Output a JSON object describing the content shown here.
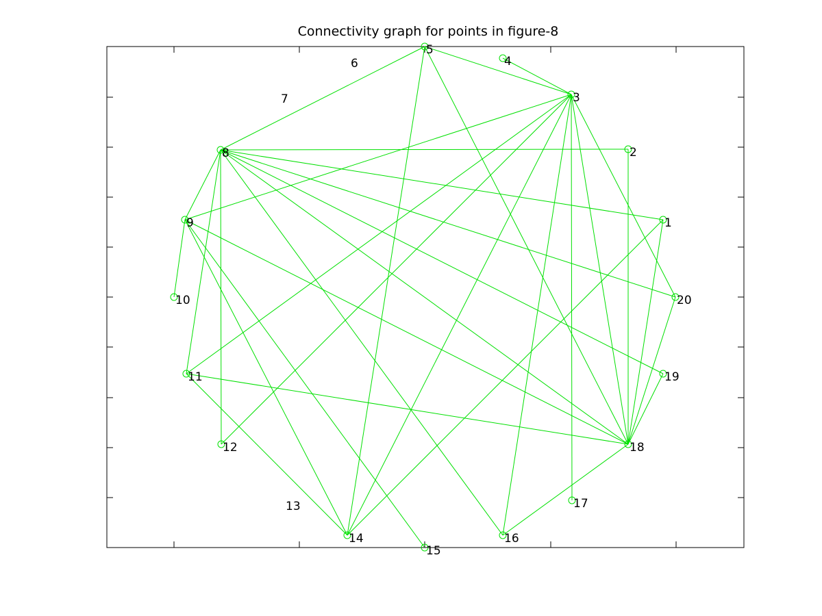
{
  "title": "Connectivity graph for points in figure-8",
  "colors": {
    "edge": "#00e000",
    "node": "#00e000",
    "text": "#000000"
  },
  "chart_data": {
    "type": "network",
    "nodes": [
      {
        "id": 1,
        "label": "1",
        "marker": true
      },
      {
        "id": 2,
        "label": "2",
        "marker": true
      },
      {
        "id": 3,
        "label": "3",
        "marker": true
      },
      {
        "id": 4,
        "label": "4",
        "marker": true
      },
      {
        "id": 5,
        "label": "5",
        "marker": true
      },
      {
        "id": 6,
        "label": "6",
        "marker": false
      },
      {
        "id": 7,
        "label": "7",
        "marker": false
      },
      {
        "id": 8,
        "label": "8",
        "marker": true
      },
      {
        "id": 9,
        "label": "9",
        "marker": true
      },
      {
        "id": 10,
        "label": "10",
        "marker": true
      },
      {
        "id": 11,
        "label": "11",
        "marker": true
      },
      {
        "id": 12,
        "label": "12",
        "marker": true
      },
      {
        "id": 13,
        "label": "13",
        "marker": false
      },
      {
        "id": 14,
        "label": "14",
        "marker": true
      },
      {
        "id": 15,
        "label": "15",
        "marker": true
      },
      {
        "id": 16,
        "label": "16",
        "marker": true
      },
      {
        "id": 17,
        "label": "17",
        "marker": true
      },
      {
        "id": 18,
        "label": "18",
        "marker": true
      },
      {
        "id": 19,
        "label": "19",
        "marker": true
      },
      {
        "id": 20,
        "label": "20",
        "marker": true
      }
    ],
    "edges": [
      [
        8,
        5
      ],
      [
        5,
        3
      ],
      [
        3,
        4
      ],
      [
        5,
        14
      ],
      [
        5,
        18
      ],
      [
        3,
        9
      ],
      [
        3,
        11
      ],
      [
        3,
        12
      ],
      [
        3,
        14
      ],
      [
        3,
        16
      ],
      [
        3,
        17
      ],
      [
        3,
        18
      ],
      [
        3,
        20
      ],
      [
        8,
        2
      ],
      [
        8,
        1
      ],
      [
        8,
        20
      ],
      [
        8,
        19
      ],
      [
        8,
        18
      ],
      [
        8,
        16
      ],
      [
        8,
        9
      ],
      [
        8,
        11
      ],
      [
        8,
        12
      ],
      [
        2,
        18
      ],
      [
        1,
        14
      ],
      [
        1,
        18
      ],
      [
        20,
        18
      ],
      [
        19,
        18
      ],
      [
        18,
        11
      ],
      [
        18,
        16
      ],
      [
        9,
        10
      ],
      [
        9,
        14
      ],
      [
        9,
        15
      ],
      [
        9,
        18
      ],
      [
        11,
        14
      ]
    ]
  }
}
